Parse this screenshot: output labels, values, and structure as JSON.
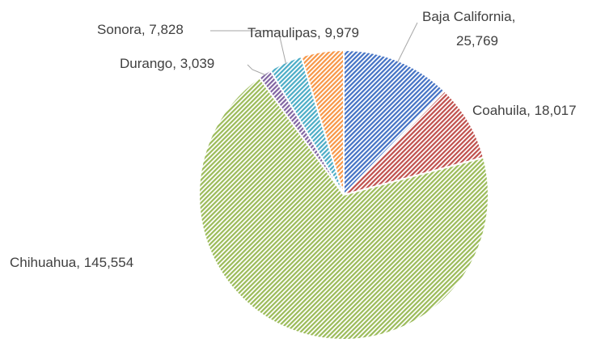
{
  "chart_data": {
    "type": "pie",
    "categories": [
      "Baja California",
      "Coahuila",
      "Chihuahua",
      "Durango",
      "Sonora",
      "Tamaulipas"
    ],
    "values": [
      25769,
      18017,
      145554,
      3039,
      7828,
      9979
    ],
    "value_labels": [
      "25,769",
      "18,017",
      "145,554",
      "3,039",
      "7,828",
      "9,979"
    ],
    "colors": [
      "#4472c4",
      "#c0504d",
      "#9bbb59",
      "#8064a2",
      "#4bacc6",
      "#f79646"
    ]
  }
}
